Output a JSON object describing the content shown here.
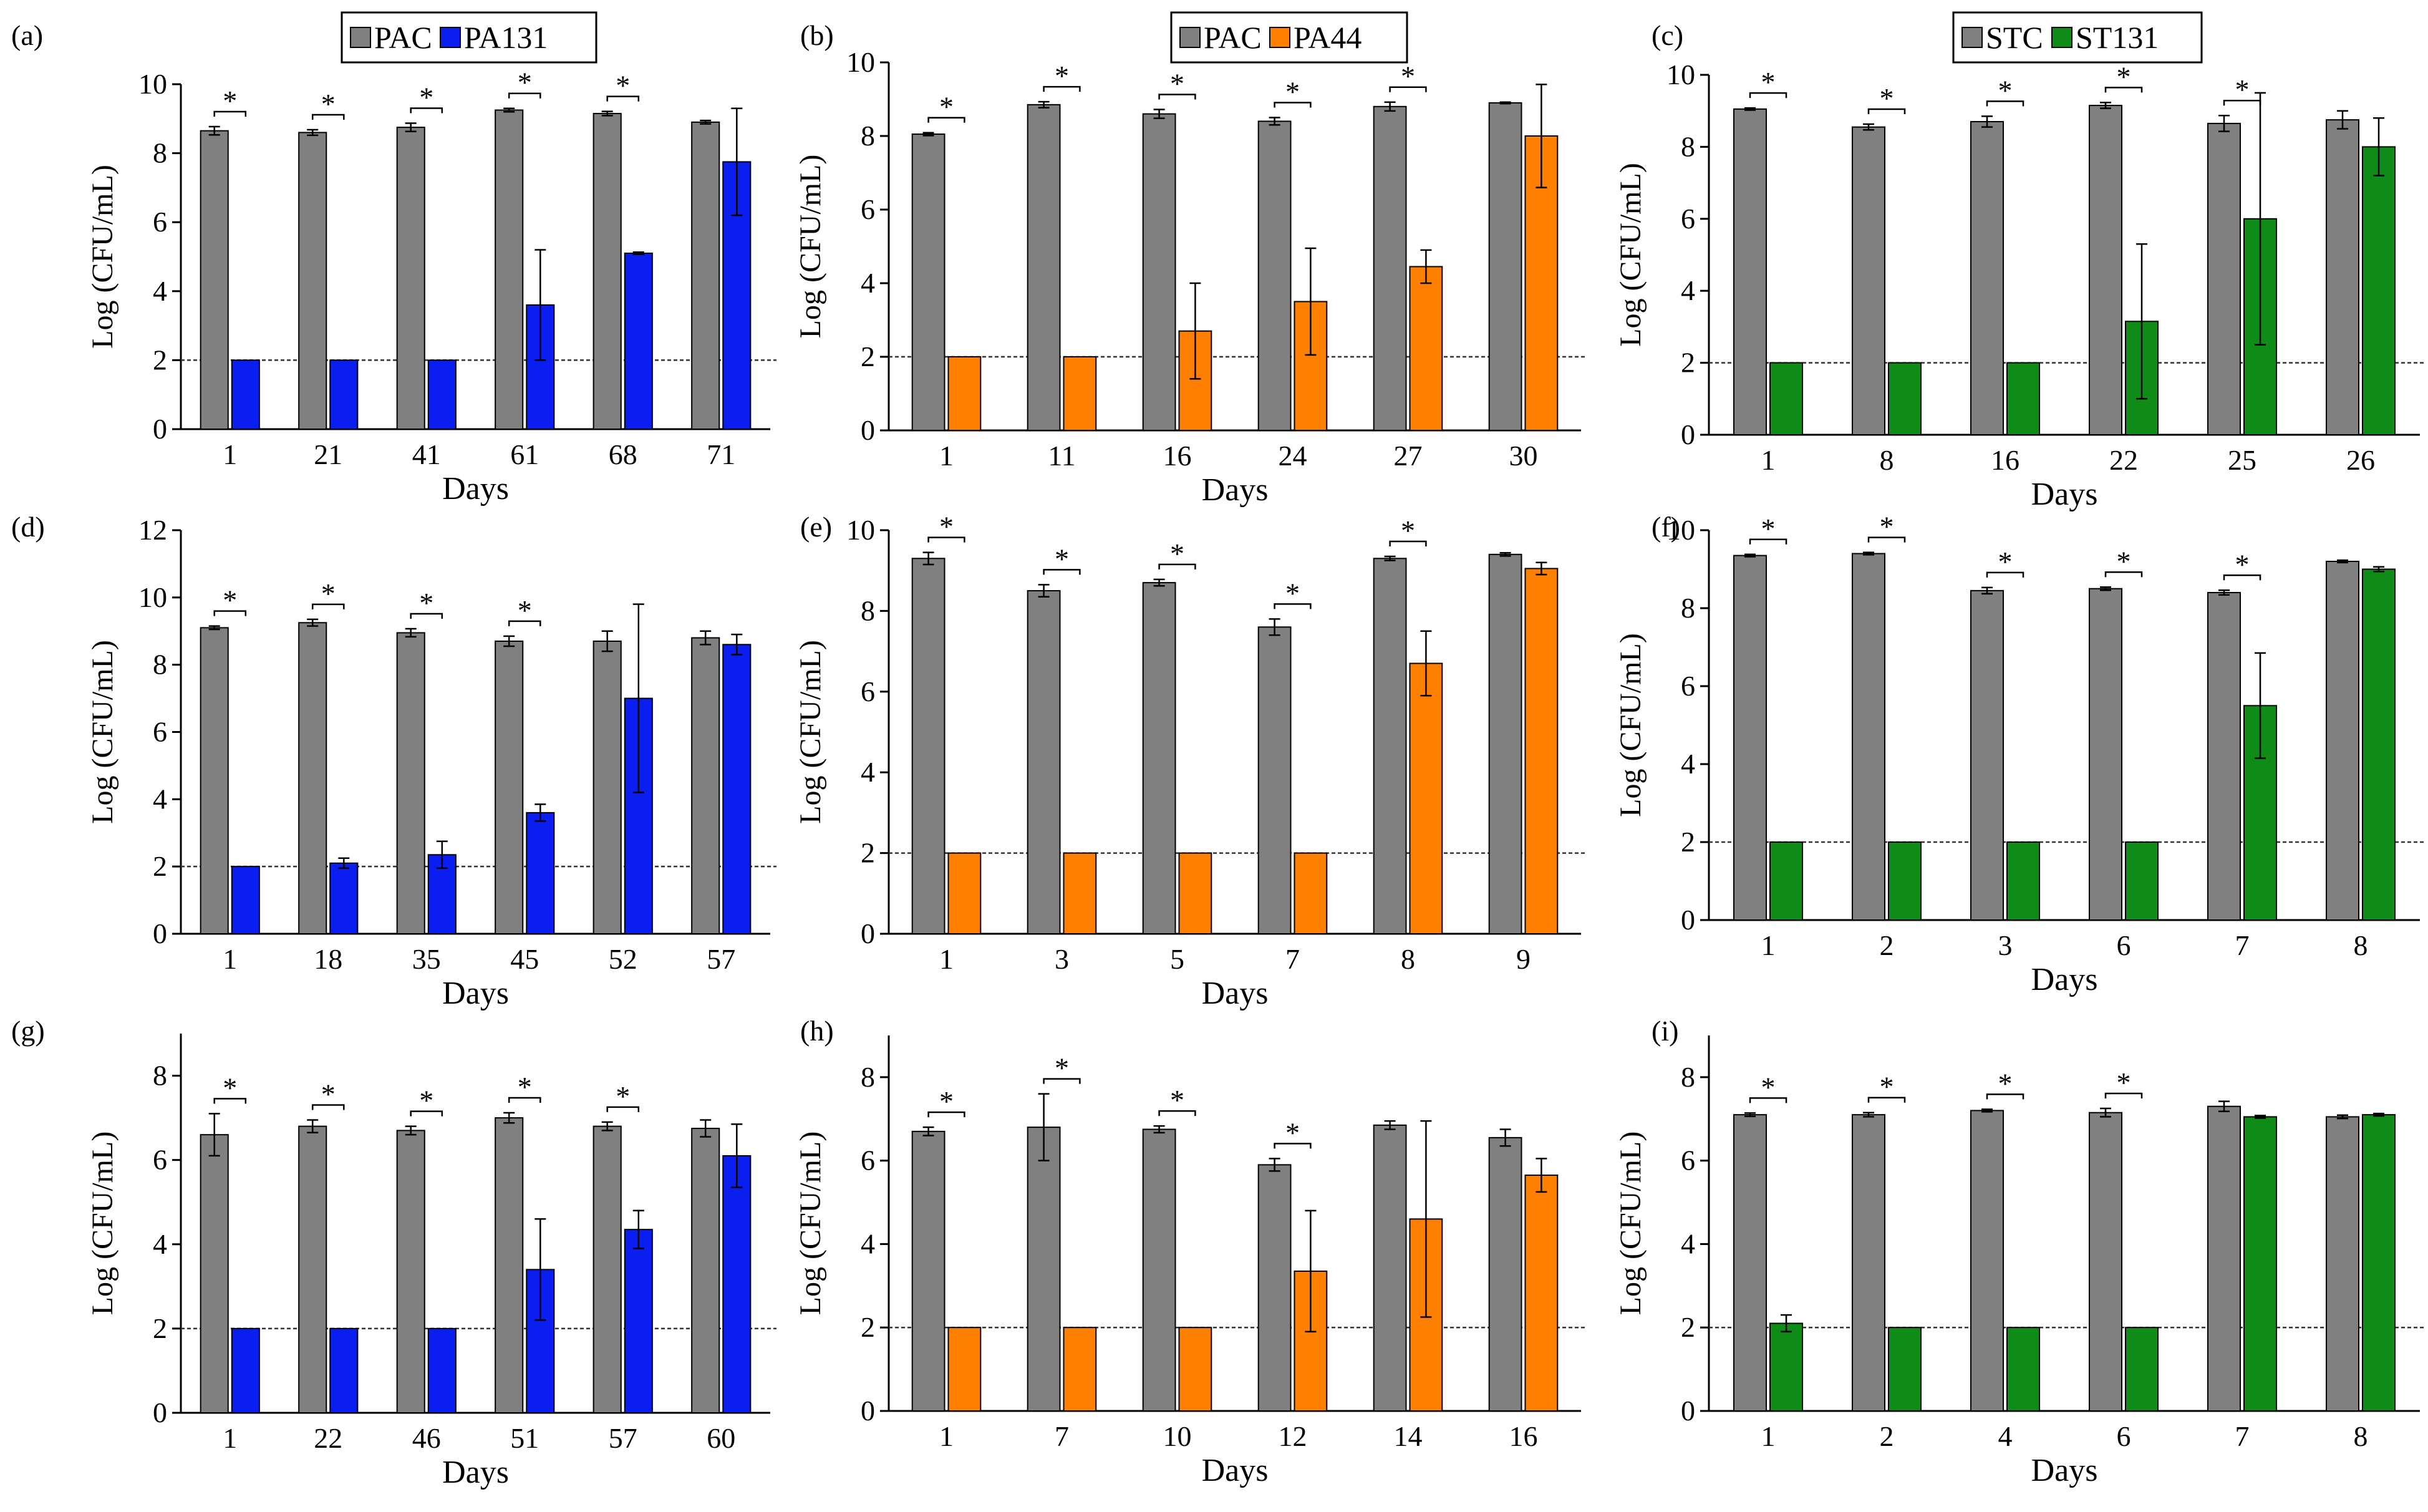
{
  "colors": {
    "control": "#808080",
    "PA131": "#0a1ef0",
    "PA44": "#ff8000",
    "ST131": "#0f8c18"
  },
  "legends": [
    {
      "entries": [
        {
          "label": "PAC",
          "color": "#808080"
        },
        {
          "label": "PA131",
          "color": "#0a1ef0"
        }
      ]
    },
    {
      "entries": [
        {
          "label": "PAC",
          "color": "#808080"
        },
        {
          "label": "PA44",
          "color": "#ff8000"
        }
      ]
    },
    {
      "entries": [
        {
          "label": "STC",
          "color": "#808080"
        },
        {
          "label": "ST131",
          "color": "#0f8c18"
        }
      ]
    }
  ],
  "chart_data": [
    {
      "panel": "(a)",
      "type": "bar",
      "xlabel": "Days",
      "ylabel": "Log (CFU/mL)",
      "ylim": [
        0,
        10
      ],
      "yticks": [
        "0",
        "2",
        "4",
        "6",
        "8",
        "10"
      ],
      "threshold": 2,
      "categories": [
        "1",
        "21",
        "41",
        "61",
        "68",
        "71"
      ],
      "series": [
        {
          "name": "PAC",
          "color": "#808080",
          "values": [
            8.65,
            8.6,
            8.75,
            9.25,
            9.15,
            8.9
          ],
          "errors": [
            0.12,
            0.08,
            0.12,
            0.05,
            0.06,
            0.05
          ]
        },
        {
          "name": "PA131",
          "color": "#0a1ef0",
          "values": [
            2,
            2,
            2,
            3.6,
            5.1,
            7.75
          ],
          "errors": [
            0,
            0,
            0,
            1.6,
            0.03,
            1.55
          ]
        }
      ],
      "significant": [
        true,
        true,
        true,
        true,
        true,
        false
      ]
    },
    {
      "panel": "(b)",
      "type": "bar",
      "xlabel": "Days",
      "ylabel": "Log (CFU/mL)",
      "ylim": [
        0,
        10
      ],
      "yticks": [
        "0",
        "2",
        "4",
        "6",
        "8",
        "10"
      ],
      "threshold": 2,
      "categories": [
        "1",
        "11",
        "16",
        "24",
        "27",
        "30"
      ],
      "series": [
        {
          "name": "PAC",
          "color": "#808080",
          "values": [
            8.05,
            8.85,
            8.6,
            8.4,
            8.8,
            8.9
          ],
          "errors": [
            0.04,
            0.08,
            0.12,
            0.1,
            0.12,
            0.02
          ]
        },
        {
          "name": "PA44",
          "color": "#ff8000",
          "values": [
            2,
            2,
            2.7,
            3.5,
            4.45,
            8.0
          ],
          "errors": [
            0,
            0,
            1.3,
            1.45,
            0.45,
            1.4
          ]
        }
      ],
      "significant": [
        true,
        true,
        true,
        true,
        true,
        false
      ]
    },
    {
      "panel": "(c)",
      "type": "bar",
      "xlabel": "Days",
      "ylabel": "Log (CFU/mL)",
      "ylim": [
        0,
        10
      ],
      "yticks": [
        "0",
        "2",
        "4",
        "6",
        "8",
        "10"
      ],
      "threshold": 2,
      "categories": [
        "1",
        "8",
        "16",
        "22",
        "25",
        "26"
      ],
      "series": [
        {
          "name": "STC",
          "color": "#808080",
          "values": [
            9.05,
            8.55,
            8.7,
            9.15,
            8.65,
            8.75
          ],
          "errors": [
            0.03,
            0.08,
            0.15,
            0.08,
            0.22,
            0.25
          ]
        },
        {
          "name": "ST131",
          "color": "#0f8c18",
          "values": [
            2,
            2,
            2,
            3.15,
            6.0,
            8.0
          ],
          "errors": [
            0,
            0,
            0,
            2.15,
            3.5,
            0.8
          ]
        }
      ],
      "significant": [
        true,
        true,
        true,
        true,
        true,
        false
      ]
    },
    {
      "panel": "(d)",
      "type": "bar",
      "xlabel": "Days",
      "ylabel": "Log (CFU/mL)",
      "ylim": [
        0,
        12
      ],
      "yticks": [
        "0",
        "2",
        "4",
        "6",
        "8",
        "10",
        "12"
      ],
      "threshold": 2,
      "categories": [
        "1",
        "18",
        "35",
        "45",
        "52",
        "57"
      ],
      "series": [
        {
          "name": "PAC",
          "color": "#808080",
          "values": [
            9.1,
            9.25,
            8.95,
            8.7,
            8.7,
            8.8
          ],
          "errors": [
            0.05,
            0.1,
            0.12,
            0.15,
            0.3,
            0.2
          ]
        },
        {
          "name": "PA131",
          "color": "#0a1ef0",
          "values": [
            2,
            2.1,
            2.35,
            3.6,
            7.0,
            8.6
          ],
          "errors": [
            0,
            0.15,
            0.4,
            0.25,
            2.8,
            0.3
          ]
        }
      ],
      "significant": [
        true,
        true,
        true,
        true,
        false,
        false
      ]
    },
    {
      "panel": "(e)",
      "type": "bar",
      "xlabel": "Days",
      "ylabel": "Log (CFU/mL)",
      "ylim": [
        0,
        10
      ],
      "yticks": [
        "0",
        "2",
        "4",
        "6",
        "8",
        "10"
      ],
      "threshold": 2,
      "categories": [
        "1",
        "3",
        "5",
        "7",
        "8",
        "9"
      ],
      "series": [
        {
          "name": "PAC",
          "color": "#808080",
          "values": [
            9.3,
            8.5,
            8.7,
            7.6,
            9.3,
            9.4
          ],
          "errors": [
            0.15,
            0.15,
            0.08,
            0.2,
            0.05,
            0.04
          ]
        },
        {
          "name": "PA44",
          "color": "#ff8000",
          "values": [
            2,
            2,
            2,
            2,
            6.7,
            9.05
          ],
          "errors": [
            0,
            0,
            0,
            0,
            0.8,
            0.15
          ]
        }
      ],
      "significant": [
        true,
        true,
        true,
        true,
        true,
        false
      ]
    },
    {
      "panel": "(f)",
      "type": "bar",
      "xlabel": "Days",
      "ylabel": "Log (CFU/mL)",
      "ylim": [
        0,
        10
      ],
      "yticks": [
        "0",
        "2",
        "4",
        "6",
        "8",
        "10"
      ],
      "threshold": 2,
      "categories": [
        "1",
        "2",
        "3",
        "6",
        "7",
        "8"
      ],
      "series": [
        {
          "name": "STC",
          "color": "#808080",
          "values": [
            9.35,
            9.4,
            8.45,
            8.5,
            8.4,
            9.2
          ],
          "errors": [
            0.03,
            0.03,
            0.08,
            0.04,
            0.06,
            0.03
          ]
        },
        {
          "name": "ST131",
          "color": "#0f8c18",
          "values": [
            2,
            2,
            2,
            2,
            5.5,
            9.0
          ],
          "errors": [
            0,
            0,
            0,
            0,
            1.35,
            0.06
          ]
        }
      ],
      "significant": [
        true,
        true,
        true,
        true,
        true,
        false
      ]
    },
    {
      "panel": "(g)",
      "type": "bar",
      "xlabel": "Days",
      "ylabel": "Log (CFU/mL)",
      "ylim": [
        0,
        9
      ],
      "yticks": [
        "0",
        "2",
        "4",
        "6",
        "8"
      ],
      "threshold": 2,
      "categories": [
        "1",
        "22",
        "46",
        "51",
        "57",
        "60"
      ],
      "series": [
        {
          "name": "PAC",
          "color": "#808080",
          "values": [
            6.6,
            6.8,
            6.7,
            7.0,
            6.8,
            6.75
          ],
          "errors": [
            0.5,
            0.15,
            0.1,
            0.12,
            0.1,
            0.2
          ]
        },
        {
          "name": "PA131",
          "color": "#0a1ef0",
          "values": [
            2,
            2,
            2,
            3.4,
            4.35,
            6.1
          ],
          "errors": [
            0,
            0,
            0,
            1.2,
            0.45,
            0.75
          ]
        }
      ],
      "significant": [
        true,
        true,
        true,
        true,
        true,
        false
      ]
    },
    {
      "panel": "(h)",
      "type": "bar",
      "xlabel": "Days",
      "ylabel": "Log (CFU/mL)",
      "ylim": [
        0,
        9
      ],
      "yticks": [
        "0",
        "2",
        "4",
        "6",
        "8"
      ],
      "threshold": 2,
      "categories": [
        "1",
        "7",
        "10",
        "12",
        "14",
        "16"
      ],
      "series": [
        {
          "name": "PAC",
          "color": "#808080",
          "values": [
            6.7,
            6.8,
            6.75,
            5.9,
            6.85,
            6.55
          ],
          "errors": [
            0.1,
            0.8,
            0.08,
            0.15,
            0.1,
            0.2
          ]
        },
        {
          "name": "PA44",
          "color": "#ff8000",
          "values": [
            2,
            2,
            2,
            3.35,
            4.6,
            5.65
          ],
          "errors": [
            0,
            0,
            0,
            1.45,
            2.35,
            0.4
          ]
        }
      ],
      "significant": [
        true,
        true,
        true,
        true,
        false,
        false
      ]
    },
    {
      "panel": "(i)",
      "type": "bar",
      "xlabel": "Days",
      "ylabel": "Log (CFU/mL)",
      "ylim": [
        0,
        9
      ],
      "yticks": [
        "0",
        "2",
        "4",
        "6",
        "8"
      ],
      "threshold": 2,
      "categories": [
        "1",
        "2",
        "4",
        "6",
        "7",
        "8"
      ],
      "series": [
        {
          "name": "STC",
          "color": "#808080",
          "values": [
            7.1,
            7.1,
            7.2,
            7.15,
            7.3,
            7.05
          ],
          "errors": [
            0.04,
            0.05,
            0.03,
            0.1,
            0.12,
            0.04
          ]
        },
        {
          "name": "ST131",
          "color": "#0f8c18",
          "values": [
            2.1,
            2,
            2,
            2,
            7.05,
            7.1
          ],
          "errors": [
            0.2,
            0,
            0,
            0,
            0.03,
            0.03
          ]
        }
      ],
      "significant": [
        true,
        true,
        true,
        true,
        false,
        false
      ]
    }
  ]
}
